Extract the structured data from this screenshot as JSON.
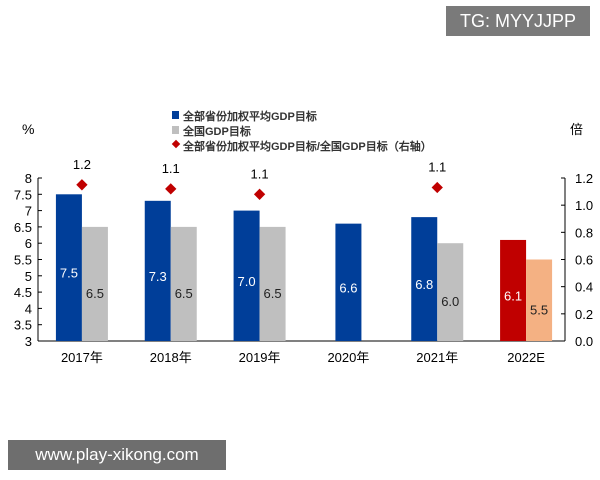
{
  "watermarks": {
    "top": "TG: MYYJJPP",
    "bottom": "www.play-xikong.com"
  },
  "chart_data": {
    "type": "bar",
    "categories": [
      "2017年",
      "2018年",
      "2019年",
      "2020年",
      "2021年",
      "2022E"
    ],
    "left_unit": "%",
    "right_unit": "倍",
    "ylim": [
      3,
      8
    ],
    "y_ticks": [
      "3",
      "3.5",
      "4",
      "4.5",
      "5",
      "5.5",
      "6",
      "6.5",
      "7",
      "7.5",
      "8"
    ],
    "y2lim": [
      0,
      1.2
    ],
    "y2_ticks": [
      "0.0",
      "0.2",
      "0.4",
      "0.6",
      "0.8",
      "1.0",
      "1.2"
    ],
    "series": [
      {
        "name": "全部省份加权平均GDP目标",
        "values": [
          7.5,
          7.3,
          7.0,
          6.6,
          6.8,
          6.1
        ],
        "labels": [
          "7.5",
          "7.3",
          "7.0",
          "6.6",
          "6.8",
          "6.1"
        ],
        "color": "#003e99",
        "highlight_color": "#c00000"
      },
      {
        "name": "全国GDP目标",
        "values": [
          6.5,
          6.5,
          6.5,
          null,
          6.0,
          5.5
        ],
        "labels": [
          "6.5",
          "6.5",
          "6.5",
          "",
          "6.0",
          "5.5"
        ],
        "color": "#bfbfbf",
        "highlight_color": "#f4b183"
      },
      {
        "name": "全部省份加权平均GDP目标/全国GDP目标（右轴）",
        "values": [
          1.15,
          1.12,
          1.08,
          null,
          1.13,
          null
        ],
        "labels": [
          "1.2",
          "1.1",
          "1.1",
          "",
          "1.1",
          ""
        ],
        "color": "#c00000",
        "axis": "right"
      }
    ]
  }
}
